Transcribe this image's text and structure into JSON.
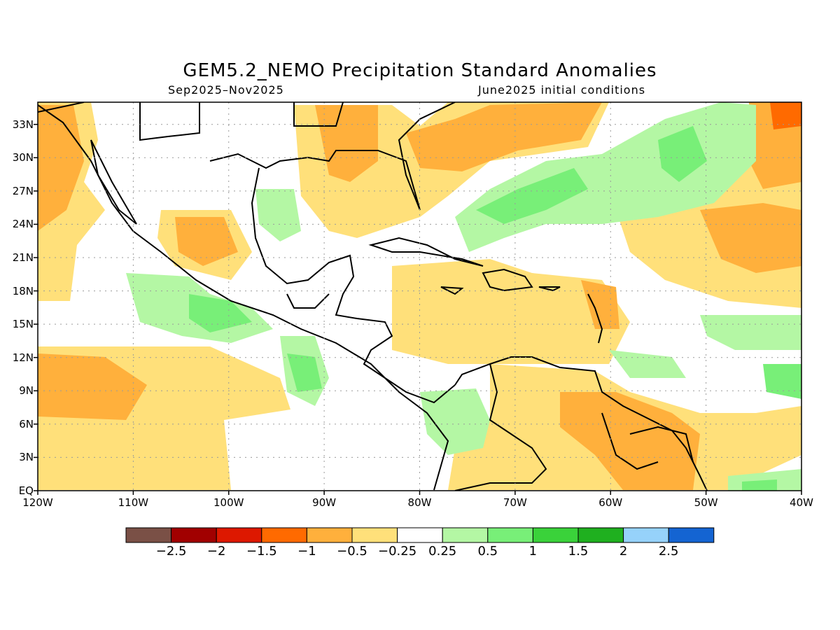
{
  "header": {
    "title": "GEM5.2_NEMO Precipitation Standard Anomalies",
    "period": "Sep2025–Nov2025",
    "initial_conditions": "June2025 initial conditions"
  },
  "map": {
    "region": {
      "lon": [
        -120,
        -40
      ],
      "lat": [
        0,
        35
      ]
    },
    "lat_ticks": [
      "33N",
      "30N",
      "27N",
      "24N",
      "21N",
      "18N",
      "15N",
      "12N",
      "9N",
      "6N",
      "3N",
      "EQ"
    ],
    "lon_ticks": [
      "120W",
      "110W",
      "100W",
      "90W",
      "80W",
      "70W",
      "60W",
      "50W",
      "40W"
    ],
    "grid": true,
    "grid_style": "dotted"
  },
  "colorbar": {
    "colors": [
      "#7a5046",
      "#a10000",
      "#dd1800",
      "#ff6a00",
      "#ffb03c",
      "#ffe07a",
      "#ffffff",
      "#b4f7a4",
      "#78ef78",
      "#3ad23a",
      "#1fb01f",
      "#96d2fa",
      "#1464d2"
    ],
    "labels": [
      "−2.5",
      "−2",
      "−1.5",
      "−1",
      "−0.5",
      "−0.25",
      "0.25",
      "0.5",
      "1",
      "1.5",
      "2",
      "2.5"
    ]
  },
  "legend_colors": {
    "dry_light": "#ffe07a",
    "dry_mod": "#ffb03c",
    "dry_strong": "#ff6a00",
    "wet_light": "#b4f7a4",
    "wet_mod": "#78ef78",
    "wet_strong": "#3ad23a"
  }
}
